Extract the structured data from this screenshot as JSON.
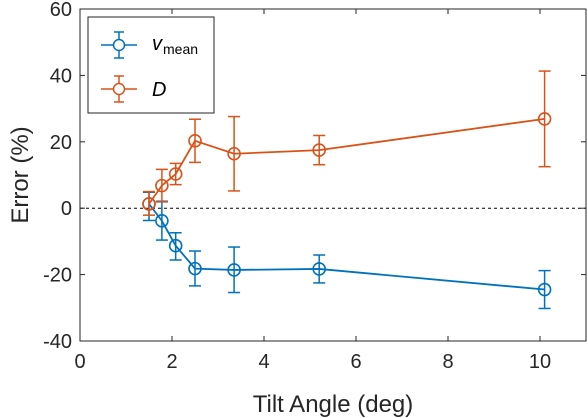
{
  "chart_data": {
    "type": "line",
    "title": "",
    "xlabel": "Tilt Angle (deg)",
    "ylabel": "Error (%)",
    "xlim": [
      0,
      11
    ],
    "ylim": [
      -40,
      60
    ],
    "xticks": [
      0,
      2,
      4,
      6,
      8,
      10
    ],
    "yticks": [
      -40,
      -20,
      0,
      20,
      40,
      60
    ],
    "xtick_labels": [
      "0",
      "2",
      "4",
      "6",
      "8",
      "10"
    ],
    "ytick_labels": [
      "-40",
      "-20",
      "0",
      "20",
      "40",
      "60"
    ],
    "grid": false,
    "legend_position": "top-left",
    "reference_line": {
      "y": 0,
      "style": "dashed",
      "color": "#000000"
    },
    "series": [
      {
        "name": "v",
        "name_subscript": "mean",
        "color": "#0072BD",
        "marker": "circle",
        "x": [
          1.5,
          1.78,
          2.08,
          2.5,
          3.35,
          5.2,
          10.1
        ],
        "y": [
          1.3,
          -3.8,
          -11.3,
          -18.2,
          -18.6,
          -18.3,
          -24.5
        ],
        "y_err_low": [
          5.0,
          5.8,
          4.3,
          5.2,
          6.8,
          4.2,
          5.7
        ],
        "y_err_high": [
          3.5,
          5.9,
          3.9,
          5.3,
          6.9,
          4.2,
          5.7
        ]
      },
      {
        "name": "D",
        "name_subscript": "",
        "color": "#D95319",
        "marker": "circle",
        "x": [
          1.5,
          1.78,
          2.08,
          2.5,
          3.35,
          5.2,
          10.1
        ],
        "y": [
          1.3,
          6.8,
          10.3,
          20.3,
          16.4,
          17.5,
          26.9
        ],
        "y_err_low": [
          3.4,
          4.9,
          3.2,
          6.5,
          11.2,
          4.4,
          14.4
        ],
        "y_err_high": [
          3.7,
          4.9,
          3.2,
          6.5,
          11.2,
          4.4,
          14.4
        ]
      }
    ]
  }
}
